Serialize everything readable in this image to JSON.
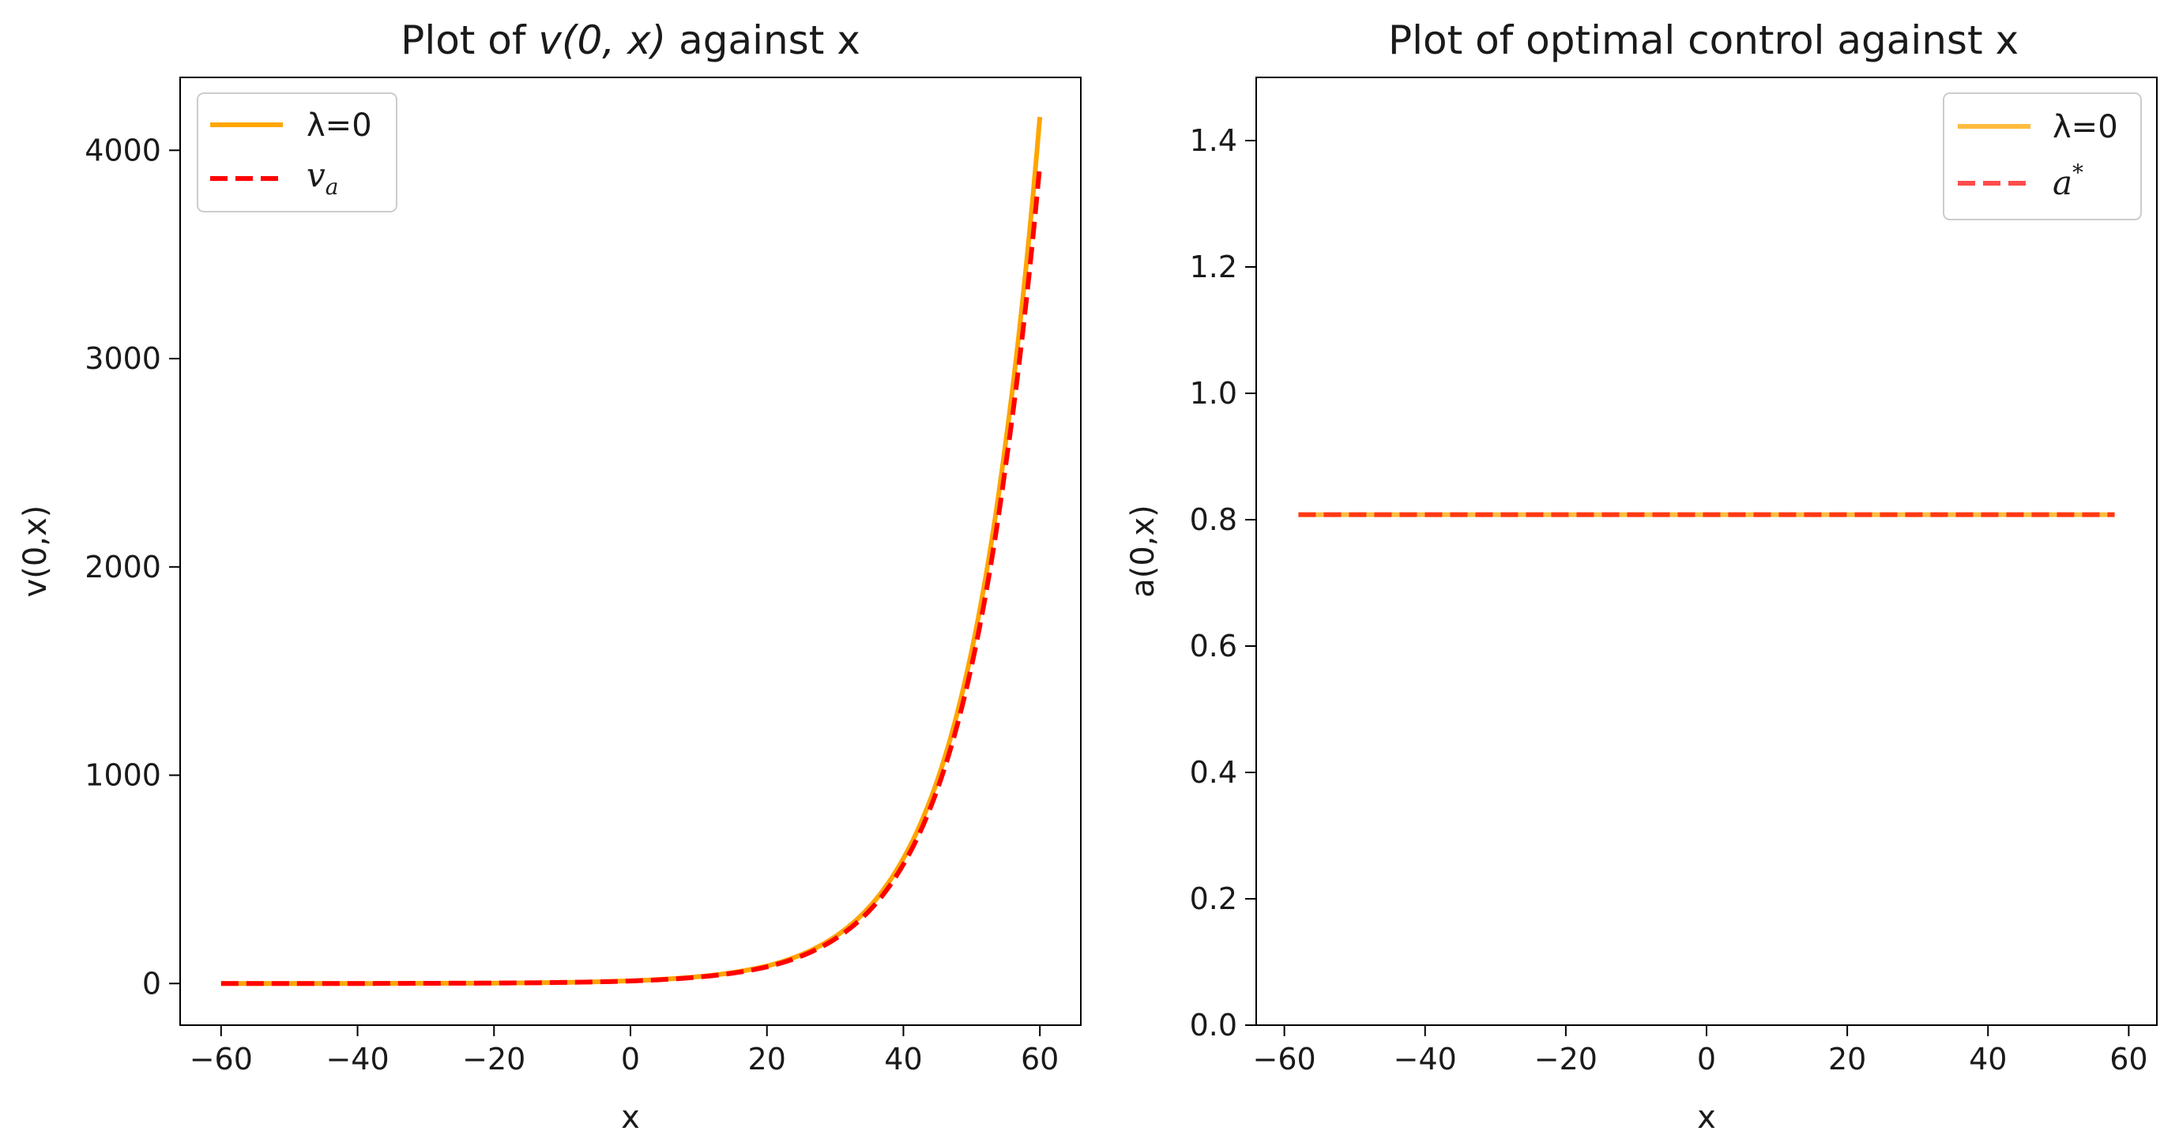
{
  "chart_data": [
    {
      "type": "line",
      "title": "Plot of v(0, x) against x",
      "title_parts": {
        "prefix": "Plot of ",
        "math": "v(0, x)",
        "suffix": " against x"
      },
      "xlabel": "x",
      "ylabel": "v(0,x)",
      "xlim": [
        -66,
        66
      ],
      "ylim": [
        -200,
        4350
      ],
      "xticks": [
        -60,
        -40,
        -20,
        0,
        20,
        40,
        60
      ],
      "xtick_labels": [
        "−60",
        "−40",
        "−20",
        "0",
        "20",
        "40",
        "60"
      ],
      "yticks": [
        0,
        1000,
        2000,
        3000,
        4000
      ],
      "ytick_labels": [
        "0",
        "1000",
        "2000",
        "3000",
        "4000"
      ],
      "legend_position": "top-left",
      "series": [
        {
          "name": "λ=0",
          "style": "solid",
          "color": "#FFA500",
          "x": [
            -60,
            -50,
            -40,
            -30,
            -20,
            -10,
            0,
            10,
            20,
            25,
            30,
            35,
            40,
            45,
            50,
            55,
            60
          ],
          "y": [
            0,
            0,
            0,
            1,
            2,
            5,
            13,
            33,
            84,
            138,
            225,
            367,
            600,
            978,
            1596,
            2600,
            4160
          ]
        },
        {
          "name": "v_a",
          "name_parts": {
            "base": "v",
            "sub": "a"
          },
          "style": "dashed",
          "color": "#FF0000",
          "x": [
            -60,
            -50,
            -40,
            -30,
            -20,
            -10,
            0,
            10,
            20,
            25,
            30,
            35,
            40,
            45,
            50,
            55,
            60
          ],
          "y": [
            0,
            0,
            0,
            1,
            2,
            5,
            12,
            31,
            80,
            131,
            214,
            349,
            572,
            934,
            1526,
            2490,
            3930
          ]
        }
      ]
    },
    {
      "type": "line",
      "title": "Plot of optimal control against x",
      "xlabel": "x",
      "ylabel": "a(0,x)",
      "xlim": [
        -64,
        64
      ],
      "ylim": [
        0,
        1.5
      ],
      "xticks": [
        -60,
        -40,
        -20,
        0,
        20,
        40,
        60
      ],
      "xtick_labels": [
        "−60",
        "−40",
        "−20",
        "0",
        "20",
        "40",
        "60"
      ],
      "yticks": [
        0.0,
        0.2,
        0.4,
        0.6,
        0.8,
        1.0,
        1.2,
        1.4
      ],
      "ytick_labels": [
        "0.0",
        "0.2",
        "0.4",
        "0.6",
        "0.8",
        "1.0",
        "1.2",
        "1.4"
      ],
      "legend_position": "top-right",
      "series": [
        {
          "name": "λ=0",
          "style": "solid",
          "color": "#FFA500",
          "alpha": 0.75,
          "x": [
            -58,
            58
          ],
          "y": [
            0.808,
            0.808
          ]
        },
        {
          "name": "a*",
          "name_parts": {
            "base": "a",
            "sup": "*"
          },
          "style": "dashed",
          "color": "#FF0000",
          "alpha": 0.7,
          "x": [
            -58,
            58
          ],
          "y": [
            0.808,
            0.808
          ]
        }
      ]
    }
  ]
}
